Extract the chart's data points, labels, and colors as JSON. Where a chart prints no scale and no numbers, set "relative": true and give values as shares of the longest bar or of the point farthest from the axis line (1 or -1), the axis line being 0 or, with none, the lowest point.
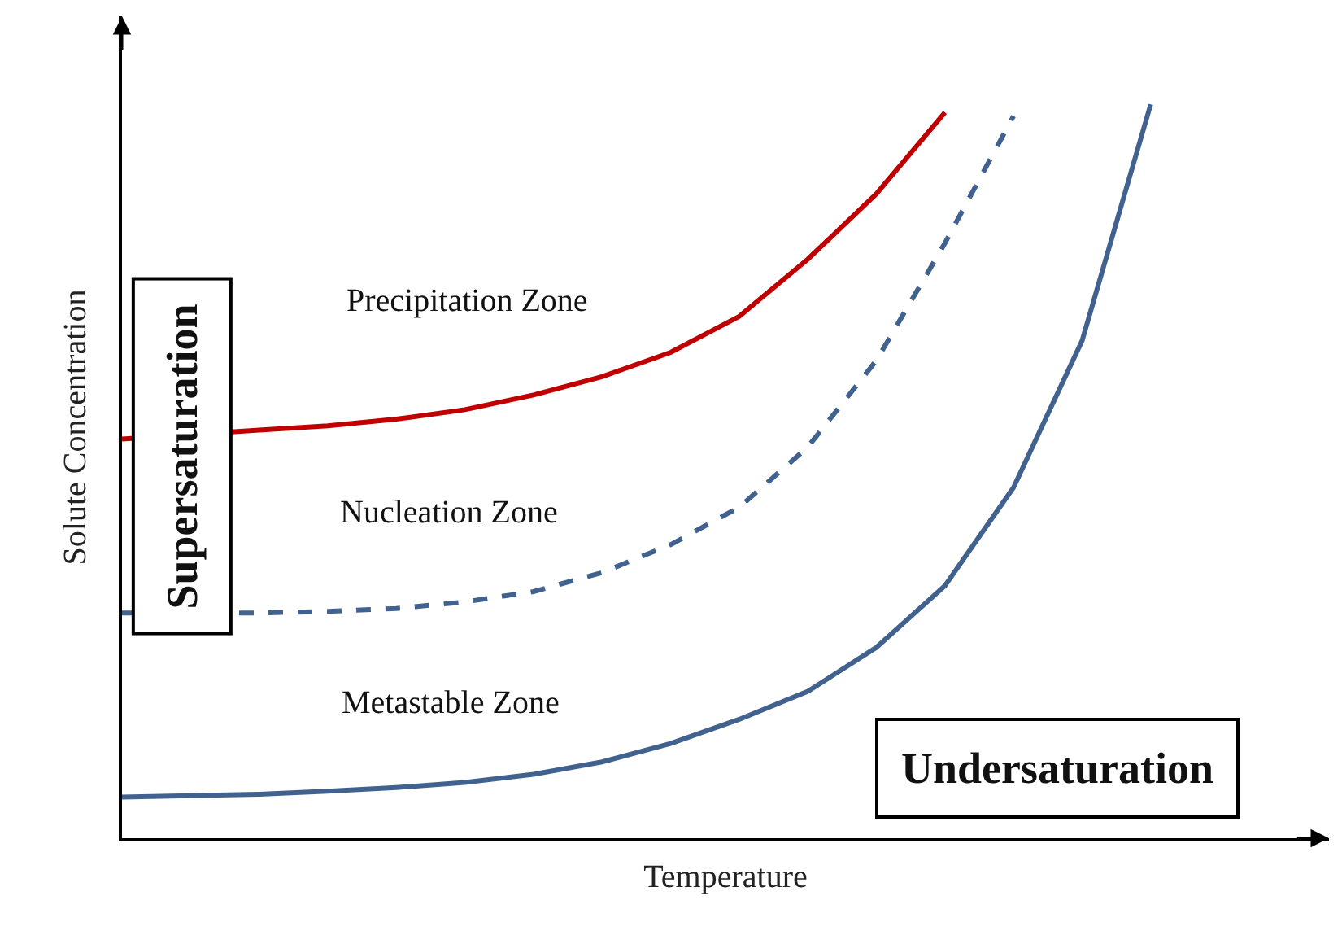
{
  "chart_data": {
    "type": "line",
    "relative": true,
    "xlabel": "Temperature",
    "ylabel": "Solute Concentration",
    "categories": [
      null,
      null,
      null,
      null,
      null,
      null,
      null,
      null,
      null,
      null,
      null,
      null,
      null,
      null,
      null,
      null
    ],
    "tick_labels": false,
    "marker": "none",
    "annotations": [
      "Precipitation Zone",
      "Nucleation Zone",
      "Metastable Zone",
      "Supersaturation",
      "Undersaturation"
    ],
    "series": [
      {
        "color": "#c00000",
        "line_style": "solid",
        "values": [
          0.544,
          null,
          0.556,
          0.562,
          0.571,
          0.584,
          0.604,
          0.629,
          0.662,
          0.711,
          0.789,
          0.878,
          0.989,
          null,
          null,
          null
        ]
      },
      {
        "color": "#41628f",
        "line_style": "dashed",
        "values": [
          0.307,
          null,
          0.307,
          0.309,
          0.313,
          0.322,
          0.336,
          0.362,
          0.4,
          0.451,
          0.533,
          0.651,
          0.811,
          0.984,
          null,
          null
        ]
      },
      {
        "color": "#41628f",
        "line_style": "solid",
        "values": [
          0.056,
          0.058,
          0.06,
          0.064,
          0.069,
          0.076,
          0.087,
          0.104,
          0.129,
          0.162,
          0.2,
          0.26,
          0.344,
          0.478,
          0.678,
          1.0
        ]
      }
    ]
  }
}
